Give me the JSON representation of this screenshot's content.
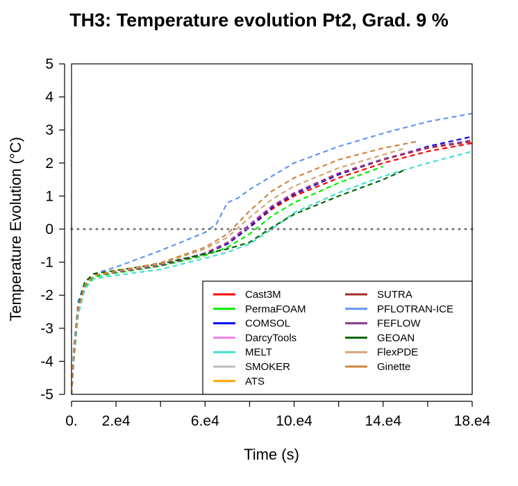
{
  "chart_data": {
    "type": "line",
    "title": "TH3: Temperature evolution  Pt2, Grad. 9 %",
    "xlabel": "Time (s)",
    "ylabel": "Temperature Evolution (°C)",
    "xlim": [
      0,
      180000
    ],
    "ylim": [
      -5,
      5
    ],
    "x_ticks": [
      {
        "value": 0,
        "label": "0."
      },
      {
        "value": 20000,
        "label": "2.e4"
      },
      {
        "value": 60000,
        "label": "6.e4"
      },
      {
        "value": 100000,
        "label": "10.e4"
      },
      {
        "value": 140000,
        "label": "14.e4"
      },
      {
        "value": 180000,
        "label": "18.e4"
      }
    ],
    "x_minor_ticks": [
      40000,
      80000,
      120000,
      160000
    ],
    "y_ticks": [
      {
        "value": -5,
        "label": "-5"
      },
      {
        "value": -4,
        "label": "-4"
      },
      {
        "value": -3,
        "label": "-3"
      },
      {
        "value": -2,
        "label": "-2"
      },
      {
        "value": -1,
        "label": "-1"
      },
      {
        "value": 0,
        "label": "0"
      },
      {
        "value": 1,
        "label": "1"
      },
      {
        "value": 2,
        "label": "2"
      },
      {
        "value": 3,
        "label": "3"
      },
      {
        "value": 4,
        "label": "4"
      },
      {
        "value": 5,
        "label": "5"
      }
    ],
    "reference_line": {
      "y": 0,
      "color": "#777777"
    },
    "legend_position": "bottom-right",
    "legend_columns": 2,
    "series": [
      {
        "name": "Cast3M",
        "color": "#ff0000",
        "x": [
          0,
          1000,
          3000,
          6000,
          10000,
          20000,
          40000,
          60000,
          70000,
          80000,
          90000,
          100000,
          120000,
          140000,
          160000,
          180000
        ],
        "y": [
          -5,
          -3.8,
          -2.4,
          -1.7,
          -1.4,
          -1.3,
          -1.1,
          -0.75,
          -0.45,
          0.05,
          0.6,
          1.0,
          1.55,
          2.0,
          2.35,
          2.6
        ]
      },
      {
        "name": "PermaFOAM",
        "color": "#00ee00",
        "x": [
          0,
          1000,
          3000,
          6000,
          10000,
          20000,
          40000,
          60000,
          70000,
          80000,
          90000,
          100000,
          120000,
          140000
        ],
        "y": [
          -5,
          -3.9,
          -2.5,
          -1.75,
          -1.45,
          -1.33,
          -1.12,
          -0.8,
          -0.55,
          -0.15,
          0.4,
          0.8,
          1.4,
          1.9
        ]
      },
      {
        "name": "COMSOL",
        "color": "#0000ee",
        "x": [
          0,
          1000,
          3000,
          6000,
          10000,
          20000,
          40000,
          60000,
          70000,
          80000,
          90000,
          100000,
          120000,
          140000,
          160000,
          180000
        ],
        "y": [
          -5,
          -3.8,
          -2.4,
          -1.7,
          -1.4,
          -1.3,
          -1.1,
          -0.75,
          -0.45,
          0.05,
          0.65,
          1.05,
          1.65,
          2.1,
          2.5,
          2.8
        ]
      },
      {
        "name": "DarcyTools",
        "color": "#ee82ee",
        "x": [
          0,
          1000,
          3000,
          6000,
          10000,
          20000,
          40000,
          60000,
          70000,
          80000,
          90000,
          100000,
          120000,
          140000,
          160000,
          180000
        ],
        "y": [
          -5,
          -3.8,
          -2.4,
          -1.7,
          -1.4,
          -1.3,
          -1.1,
          -0.72,
          -0.4,
          0.15,
          0.7,
          1.1,
          1.7,
          2.1,
          2.45,
          2.7
        ]
      },
      {
        "name": "MELT",
        "color": "#40e0d0",
        "x": [
          0,
          1000,
          3000,
          6000,
          10000,
          20000,
          40000,
          60000,
          70000,
          80000,
          90000,
          100000,
          120000,
          140000,
          160000,
          180000
        ],
        "y": [
          -5,
          -4.0,
          -2.6,
          -1.8,
          -1.5,
          -1.4,
          -1.22,
          -0.88,
          -0.7,
          -0.45,
          0.0,
          0.5,
          1.1,
          1.6,
          2.0,
          2.35
        ]
      },
      {
        "name": "SMOKER",
        "color": "#bebebe",
        "x": [],
        "y": []
      },
      {
        "name": "ATS",
        "color": "#ffa500",
        "x": [],
        "y": []
      },
      {
        "name": "SUTRA",
        "color": "#a52a2a",
        "x": [
          0,
          1000,
          3000,
          6000,
          10000,
          20000,
          40000,
          60000,
          70000,
          80000,
          90000,
          100000,
          120000,
          140000,
          160000,
          180000
        ],
        "y": [
          -5,
          -3.8,
          -2.4,
          -1.7,
          -1.4,
          -1.3,
          -1.1,
          -0.74,
          -0.42,
          0.1,
          0.68,
          1.08,
          1.68,
          2.1,
          2.45,
          2.65
        ]
      },
      {
        "name": "PFLOTRAN-ICE",
        "color": "#6495ed",
        "x": [
          0,
          1000,
          3000,
          6000,
          10000,
          20000,
          40000,
          60000,
          65000,
          70000,
          75000,
          80000,
          90000,
          100000,
          120000,
          140000,
          160000,
          180000
        ],
        "y": [
          -5,
          -3.6,
          -2.2,
          -1.6,
          -1.35,
          -1.15,
          -0.65,
          -0.1,
          0.15,
          0.8,
          0.95,
          1.2,
          1.6,
          2.0,
          2.5,
          2.9,
          3.25,
          3.5
        ]
      },
      {
        "name": "FEFLOW",
        "color": "#8b3a8b",
        "x": [
          0,
          1000,
          3000,
          6000,
          10000,
          20000,
          40000,
          60000,
          70000,
          80000,
          90000,
          100000,
          120000,
          140000,
          160000,
          180000
        ],
        "y": [
          -5,
          -3.8,
          -2.4,
          -1.7,
          -1.4,
          -1.3,
          -1.1,
          -0.73,
          -0.41,
          0.12,
          0.69,
          1.09,
          1.69,
          2.12,
          2.48,
          2.68
        ]
      },
      {
        "name": "GEOAN",
        "color": "#006400",
        "x": [
          0,
          1000,
          3000,
          6000,
          10000,
          20000,
          40000,
          60000,
          70000,
          80000,
          90000,
          100000,
          120000,
          140000,
          150000
        ],
        "y": [
          -5,
          -3.9,
          -2.3,
          -1.6,
          -1.35,
          -1.25,
          -1.05,
          -0.75,
          -0.6,
          -0.4,
          0.05,
          0.45,
          1.0,
          1.5,
          1.8
        ]
      },
      {
        "name": "FlexPDE",
        "color": "#d2a679",
        "x": [
          0,
          1000,
          3000,
          6000,
          10000,
          20000,
          40000,
          60000,
          70000,
          80000,
          90000,
          100000,
          120000,
          140000,
          150000
        ],
        "y": [
          -5,
          -3.8,
          -2.4,
          -1.7,
          -1.4,
          -1.28,
          -1.05,
          -0.6,
          -0.25,
          0.35,
          0.9,
          1.3,
          1.85,
          2.25,
          2.45
        ]
      },
      {
        "name": "Ginette",
        "color": "#cd853f",
        "x": [
          0,
          1000,
          3000,
          6000,
          10000,
          20000,
          40000,
          60000,
          70000,
          80000,
          90000,
          100000,
          120000,
          140000,
          155000
        ],
        "y": [
          -5,
          -3.8,
          -2.4,
          -1.7,
          -1.4,
          -1.27,
          -1.02,
          -0.55,
          -0.15,
          0.55,
          1.15,
          1.55,
          2.1,
          2.45,
          2.65
        ]
      }
    ]
  }
}
